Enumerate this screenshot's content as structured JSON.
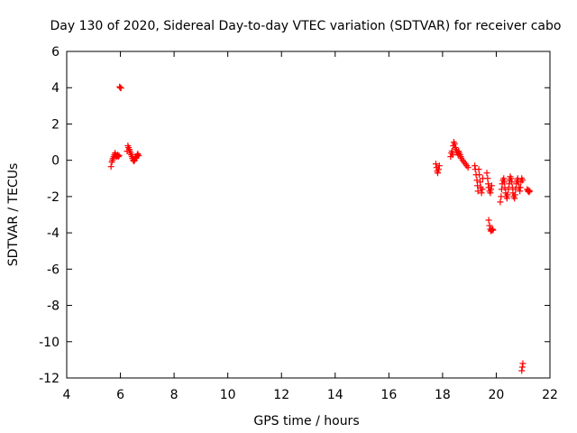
{
  "chart_data": {
    "type": "scatter",
    "title": "Day 130 of 2020, Sidereal Day-to-day VTEC variation (SDTVAR) for receiver cabo",
    "xlabel": "GPS time / hours",
    "ylabel": "SDTVAR / TECUs",
    "xlim": [
      4,
      22
    ],
    "ylim": [
      -12,
      6
    ],
    "x_ticks": [
      4,
      6,
      8,
      10,
      12,
      14,
      16,
      18,
      20,
      22
    ],
    "y_ticks": [
      -12,
      -10,
      -8,
      -6,
      -4,
      -2,
      0,
      2,
      4,
      6
    ],
    "grid": false,
    "marker": "+",
    "series": [
      {
        "name": "SDTVAR",
        "color": "#ff0000",
        "points": [
          [
            5.65,
            -0.35
          ],
          [
            5.68,
            -0.1
          ],
          [
            5.7,
            0.0
          ],
          [
            5.72,
            0.1
          ],
          [
            5.75,
            0.2
          ],
          [
            5.78,
            0.3
          ],
          [
            5.8,
            0.4
          ],
          [
            5.82,
            0.3
          ],
          [
            5.85,
            0.2
          ],
          [
            5.88,
            0.25
          ],
          [
            5.9,
            0.3
          ],
          [
            5.92,
            0.2
          ],
          [
            5.95,
            0.25
          ],
          [
            5.97,
            4.05
          ],
          [
            6.0,
            4.0
          ],
          [
            6.02,
            3.98
          ],
          [
            6.25,
            0.5
          ],
          [
            6.28,
            0.8
          ],
          [
            6.3,
            0.7
          ],
          [
            6.33,
            0.6
          ],
          [
            6.35,
            0.5
          ],
          [
            6.38,
            0.4
          ],
          [
            6.4,
            0.3
          ],
          [
            6.43,
            0.2
          ],
          [
            6.45,
            0.1
          ],
          [
            6.48,
            0.0
          ],
          [
            6.5,
            -0.05
          ],
          [
            6.53,
            0.0
          ],
          [
            6.55,
            0.1
          ],
          [
            6.58,
            0.15
          ],
          [
            6.6,
            0.2
          ],
          [
            6.63,
            0.3
          ],
          [
            6.65,
            0.35
          ],
          [
            6.68,
            0.25
          ],
          [
            17.75,
            -0.2
          ],
          [
            17.78,
            -0.4
          ],
          [
            17.8,
            -0.6
          ],
          [
            17.82,
            -0.7
          ],
          [
            17.85,
            -0.5
          ],
          [
            17.88,
            -0.3
          ],
          [
            18.3,
            0.2
          ],
          [
            18.33,
            0.4
          ],
          [
            18.35,
            0.5
          ],
          [
            18.38,
            0.3
          ],
          [
            18.4,
            0.8
          ],
          [
            18.42,
            1.0
          ],
          [
            18.45,
            0.9
          ],
          [
            18.48,
            0.7
          ],
          [
            18.5,
            0.6
          ],
          [
            18.52,
            0.5
          ],
          [
            18.55,
            0.4
          ],
          [
            18.58,
            0.3
          ],
          [
            18.6,
            0.5
          ],
          [
            18.62,
            0.4
          ],
          [
            18.65,
            0.3
          ],
          [
            18.68,
            0.2
          ],
          [
            18.7,
            0.1
          ],
          [
            18.75,
            0.0
          ],
          [
            18.8,
            -0.1
          ],
          [
            18.85,
            -0.2
          ],
          [
            18.9,
            -0.3
          ],
          [
            18.95,
            -0.4
          ],
          [
            19.2,
            -0.3
          ],
          [
            19.22,
            -0.5
          ],
          [
            19.25,
            -0.8
          ],
          [
            19.28,
            -1.1
          ],
          [
            19.3,
            -1.4
          ],
          [
            19.32,
            -1.7
          ],
          [
            19.35,
            -0.5
          ],
          [
            19.37,
            -0.8
          ],
          [
            19.4,
            -1.2
          ],
          [
            19.42,
            -1.5
          ],
          [
            19.45,
            -1.8
          ],
          [
            19.48,
            -1.6
          ],
          [
            19.5,
            -1.0
          ],
          [
            19.65,
            -0.7
          ],
          [
            19.68,
            -1.0
          ],
          [
            19.7,
            -1.3
          ],
          [
            19.72,
            -1.5
          ],
          [
            19.75,
            -1.7
          ],
          [
            19.78,
            -1.8
          ],
          [
            19.8,
            -1.6
          ],
          [
            19.83,
            -1.4
          ],
          [
            19.72,
            -3.3
          ],
          [
            19.75,
            -3.6
          ],
          [
            19.78,
            -3.8
          ],
          [
            19.8,
            -3.9
          ],
          [
            19.83,
            -3.85
          ],
          [
            19.86,
            -3.8
          ],
          [
            19.88,
            -3.85
          ],
          [
            20.15,
            -2.3
          ],
          [
            20.18,
            -2.0
          ],
          [
            20.2,
            -1.6
          ],
          [
            20.22,
            -1.3
          ],
          [
            20.25,
            -1.1
          ],
          [
            20.28,
            -1.0
          ],
          [
            20.3,
            -1.2
          ],
          [
            20.32,
            -1.5
          ],
          [
            20.35,
            -1.8
          ],
          [
            20.38,
            -2.0
          ],
          [
            20.4,
            -2.1
          ],
          [
            20.42,
            -1.9
          ],
          [
            20.45,
            -1.6
          ],
          [
            20.48,
            -1.3
          ],
          [
            20.5,
            -1.1
          ],
          [
            20.52,
            -0.9
          ],
          [
            20.55,
            -1.0
          ],
          [
            20.58,
            -1.2
          ],
          [
            20.6,
            -1.5
          ],
          [
            20.62,
            -1.8
          ],
          [
            20.65,
            -2.0
          ],
          [
            20.68,
            -2.1
          ],
          [
            20.7,
            -1.9
          ],
          [
            20.72,
            -1.6
          ],
          [
            20.75,
            -1.3
          ],
          [
            20.78,
            -1.1
          ],
          [
            20.8,
            -1.0
          ],
          [
            20.82,
            -1.2
          ],
          [
            20.85,
            -1.5
          ],
          [
            20.88,
            -1.7
          ],
          [
            20.9,
            -1.5
          ],
          [
            20.92,
            -1.2
          ],
          [
            20.95,
            -1.0
          ],
          [
            20.98,
            -1.1
          ],
          [
            20.95,
            -11.6
          ],
          [
            20.97,
            -11.4
          ],
          [
            20.99,
            -11.2
          ],
          [
            21.15,
            -1.6
          ],
          [
            21.18,
            -1.7
          ],
          [
            21.2,
            -1.65
          ],
          [
            21.22,
            -1.75
          ],
          [
            21.25,
            -1.7
          ]
        ]
      }
    ]
  }
}
